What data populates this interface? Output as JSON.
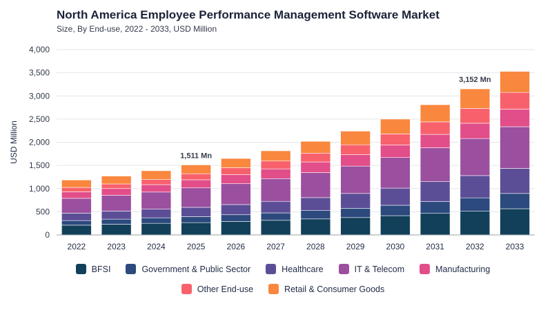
{
  "title": "North America Employee Performance Management Software Market",
  "subtitle": "Size, By End-use, 2022 - 2033, USD Million",
  "chart_data": {
    "type": "bar",
    "stacked": true,
    "title": "North America Employee Performance Management Software Market",
    "subtitle": "Size, By End-use, 2022 - 2033, USD Million",
    "xlabel": "",
    "ylabel": "USD Million",
    "ylim": [
      0,
      4000
    ],
    "yticks": [
      0,
      500,
      1000,
      1500,
      2000,
      2500,
      3000,
      3500,
      4000
    ],
    "ytick_labels": [
      "0",
      "500",
      "1,000",
      "1,500",
      "2,000",
      "2,500",
      "3,000",
      "3,500",
      "4,000"
    ],
    "grid": true,
    "legend_position": "bottom",
    "categories": [
      "2022",
      "2023",
      "2024",
      "2025",
      "2026",
      "2027",
      "2028",
      "2029",
      "2030",
      "2031",
      "2032",
      "2033"
    ],
    "series": [
      {
        "name": "BFSI",
        "color": "#12405a",
        "values": [
          210,
          230,
          250,
          265,
          290,
          315,
          345,
          375,
          415,
          465,
          510,
          565
        ]
      },
      {
        "name": "Government & Public Sector",
        "color": "#2c4a7e",
        "values": [
          100,
          110,
          120,
          130,
          145,
          160,
          180,
          200,
          225,
          255,
          290,
          330
        ]
      },
      {
        "name": "Healthcare",
        "color": "#5c4e96",
        "values": [
          160,
          175,
          185,
          200,
          220,
          250,
          280,
          320,
          370,
          430,
          480,
          540
        ]
      },
      {
        "name": "IT & Telecom",
        "color": "#9b4f9f",
        "values": [
          320,
          340,
          370,
          420,
          450,
          490,
          540,
          590,
          660,
          730,
          800,
          900
        ]
      },
      {
        "name": "Manufacturing",
        "color": "#e24e89",
        "values": [
          140,
          145,
          160,
          175,
          195,
          210,
          230,
          250,
          270,
          290,
          330,
          380
        ]
      },
      {
        "name": "Other End-use",
        "color": "#f8616c",
        "values": [
          95,
          100,
          110,
          130,
          150,
          170,
          190,
          210,
          240,
          270,
          320,
          360
        ]
      },
      {
        "name": "Retail & Consumer Goods",
        "color": "#f9873e",
        "values": [
          160,
          170,
          190,
          191,
          200,
          220,
          255,
          295,
          320,
          370,
          422,
          455
        ]
      }
    ],
    "annotations": [
      {
        "category": "2025",
        "text": "1,511 Mn"
      },
      {
        "category": "2032",
        "text": "3,152 Mn"
      }
    ]
  }
}
